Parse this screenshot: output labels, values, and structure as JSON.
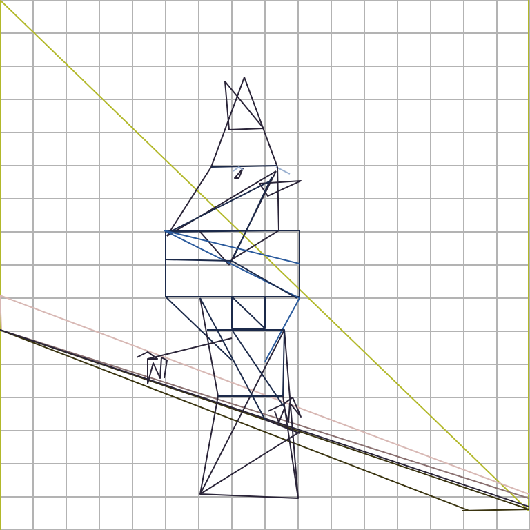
{
  "scene": {
    "background": "#ffffff",
    "grid": {
      "visible": true,
      "color": "#b3b3b3"
    },
    "palette": {
      "olive": "#b2b82a",
      "dark": "#2a2438",
      "navy": "#1c2a4a",
      "blue": "#2a5a9c",
      "pink": "#d8b8b4",
      "brown": "#8a7070",
      "olive_dark": "#3a3410",
      "light_blue": "#9ab0d0"
    }
  }
}
